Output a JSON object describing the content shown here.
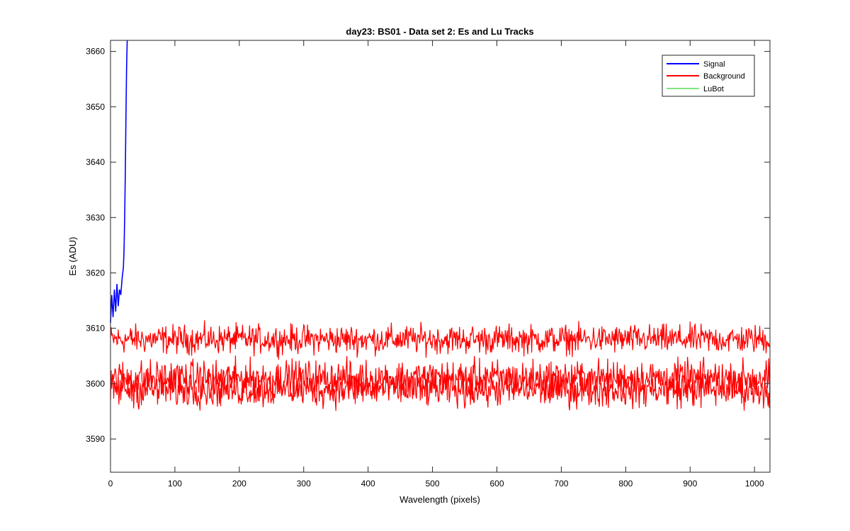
{
  "chart_data": {
    "type": "line",
    "title": "day23: BS01 - Data set 2: Es and Lu Tracks",
    "xlabel": "Wavelength (pixels)",
    "ylabel": "Es (ADU)",
    "xlim": [
      0,
      1024
    ],
    "ylim": [
      3584,
      3662
    ],
    "xticks": [
      0,
      100,
      200,
      300,
      400,
      500,
      600,
      700,
      800,
      900,
      1000
    ],
    "yticks": [
      3590,
      3600,
      3610,
      3620,
      3630,
      3640,
      3650,
      3660
    ],
    "grid": false,
    "legend_position": "top-right",
    "series": [
      {
        "name": "Signal",
        "color": "#0000ff",
        "x": [
          0,
          2,
          4,
          6,
          8,
          10,
          12,
          14,
          16,
          18,
          20,
          21,
          22,
          23,
          24,
          25,
          26
        ],
        "values": [
          3611,
          3616,
          3612,
          3617,
          3613,
          3618,
          3614,
          3617,
          3616,
          3619,
          3621,
          3624,
          3630,
          3638,
          3648,
          3657,
          3662
        ]
      },
      {
        "name": "Background",
        "color": "#ff0000",
        "tracks": [
          {
            "level": 3608,
            "amplitude": 1.6
          },
          {
            "level": 3601,
            "amplitude": 2.0
          },
          {
            "level": 3599,
            "amplitude": 2.0
          }
        ],
        "x_range": [
          0,
          1024
        ],
        "range": [
          3594,
          3612
        ]
      },
      {
        "name": "LuBot",
        "color": "#00cc00",
        "values": []
      }
    ]
  }
}
